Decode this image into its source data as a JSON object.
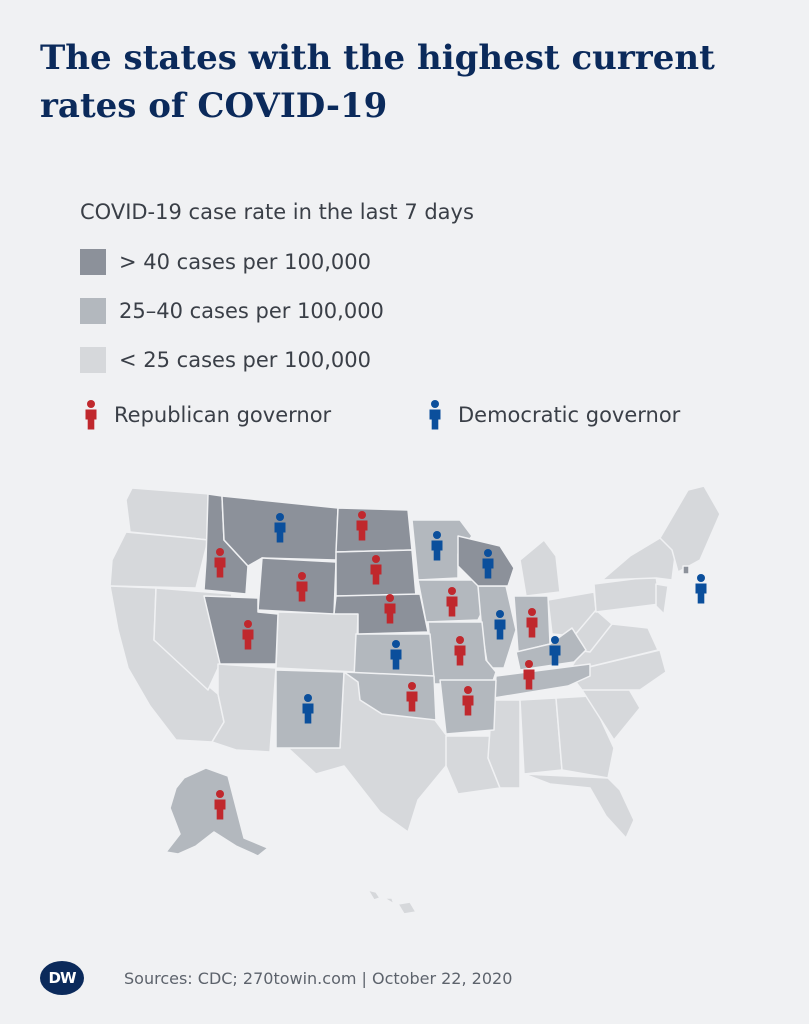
{
  "title": "The states with the highest current rates of COVID-19",
  "legend": {
    "title": "COVID-19 case rate in the last 7 days",
    "high": {
      "label": "> 40 cases per 100,000",
      "color": "#8c919a"
    },
    "medium": {
      "label": "25–40 cases per 100,000",
      "color": "#b3b8be"
    },
    "low": {
      "label": "< 25 cases per 100,000",
      "color": "#d6d8db"
    },
    "republican": {
      "label": "Republican governor",
      "color": "#c0282d"
    },
    "democratic": {
      "label": "Democratic governor",
      "color": "#0b4f9c"
    }
  },
  "map_data": {
    "high_rate_states": [
      "Montana",
      "North Dakota",
      "South Dakota",
      "Idaho",
      "Wyoming",
      "Utah",
      "Nebraska",
      "Wisconsin",
      "Rhode Island"
    ],
    "medium_rate_states": [
      "Alaska",
      "Minnesota",
      "Iowa",
      "Illinois",
      "Indiana",
      "Kansas",
      "Missouri",
      "Oklahoma",
      "Arkansas",
      "Tennessee",
      "Kentucky",
      "New Mexico"
    ],
    "markers": [
      {
        "state": "Montana",
        "party": "democratic"
      },
      {
        "state": "North Dakota",
        "party": "republican"
      },
      {
        "state": "South Dakota",
        "party": "republican"
      },
      {
        "state": "Idaho",
        "party": "republican"
      },
      {
        "state": "Wyoming",
        "party": "republican"
      },
      {
        "state": "Utah",
        "party": "republican"
      },
      {
        "state": "Nebraska",
        "party": "republican"
      },
      {
        "state": "Wisconsin",
        "party": "democratic"
      },
      {
        "state": "Minnesota",
        "party": "democratic"
      },
      {
        "state": "Iowa",
        "party": "republican"
      },
      {
        "state": "Illinois",
        "party": "democratic"
      },
      {
        "state": "Indiana",
        "party": "republican"
      },
      {
        "state": "Kansas",
        "party": "democratic"
      },
      {
        "state": "Missouri",
        "party": "republican"
      },
      {
        "state": "Oklahoma",
        "party": "republican"
      },
      {
        "state": "Arkansas",
        "party": "republican"
      },
      {
        "state": "Tennessee",
        "party": "republican"
      },
      {
        "state": "Kentucky",
        "party": "democratic"
      },
      {
        "state": "New Mexico",
        "party": "democratic"
      },
      {
        "state": "Alaska",
        "party": "republican"
      },
      {
        "state": "Rhode Island",
        "party": "democratic"
      }
    ]
  },
  "footer": {
    "logo": "DW",
    "sources": "Sources: CDC; 270towin.com | October 22, 2020"
  }
}
